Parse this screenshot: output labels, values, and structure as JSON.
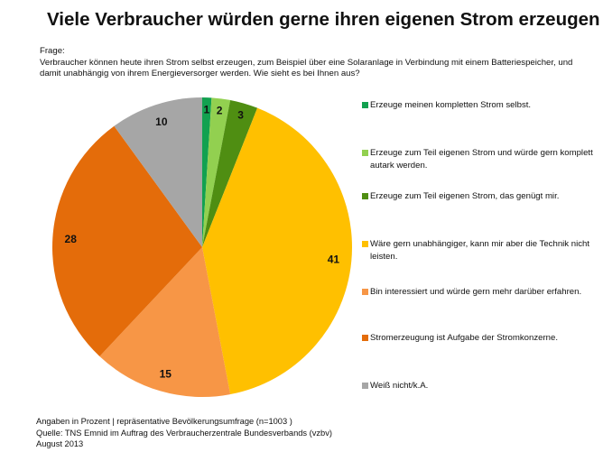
{
  "title": "Viele Verbraucher würden gerne ihren eigenen Strom erzeugen",
  "question": {
    "label": "Frage:",
    "text": "Verbraucher können heute ihren Strom selbst erzeugen, zum Beispiel über eine Solaranlage in Verbindung mit einem Batteriespeicher, und damit unabhängig von ihrem Energieversorger werden. Wie sieht es bei Ihnen aus?"
  },
  "chart_data": {
    "type": "pie",
    "unit": "Prozent",
    "start": "top, clockwise",
    "legend_position": "right",
    "slices": [
      {
        "name": "Erzeuge meinen kompletten Strom selbst.",
        "value": 1,
        "label": "1",
        "color": "#12a150"
      },
      {
        "name": "Erzeuge zum Teil eigenen Strom und würde gern komplett autark werden.",
        "value": 2,
        "label": "2",
        "color": "#92d050"
      },
      {
        "name": "Erzeuge zum Teil eigenen Strom, das genügt mir.",
        "value": 3,
        "label": "3",
        "color": "#4f8e12"
      },
      {
        "name": "Wäre gern unabhängiger, kann mir aber die Technik nicht leisten.",
        "value": 41,
        "label": "41",
        "color": "#ffc000"
      },
      {
        "name": "Bin interessiert und würde gern mehr darüber erfahren.",
        "value": 15,
        "label": "15",
        "color": "#f79646"
      },
      {
        "name": "Stromerzeugung ist Aufgabe der Stromkonzerne.",
        "value": 28,
        "label": "28",
        "color": "#e46c0a"
      },
      {
        "name": "Weiß nicht/k.A.",
        "value": 10,
        "label": "10",
        "color": "#a6a6a6"
      }
    ]
  },
  "footer": {
    "line1": "Angaben in Prozent | repräsentative Bevölkerungsumfrage (n=1003 )",
    "line2": "Quelle: TNS Emnid im Auftrag des Verbraucherzentrale Bundesverbands (vzbv)",
    "line3": "August 2013"
  }
}
